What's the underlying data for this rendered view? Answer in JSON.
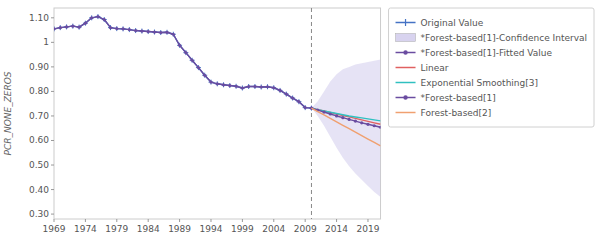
{
  "chart_data": {
    "type": "line",
    "y_label": "PCR_NONE_ZEROS",
    "x": [
      1969,
      1970,
      1971,
      1972,
      1973,
      1974,
      1975,
      1976,
      1977,
      1978,
      1979,
      1980,
      1981,
      1982,
      1983,
      1984,
      1985,
      1986,
      1987,
      1988,
      1989,
      1990,
      1991,
      1992,
      1993,
      1994,
      1995,
      1996,
      1997,
      1998,
      1999,
      2000,
      2001,
      2002,
      2003,
      2004,
      2005,
      2006,
      2007,
      2008,
      2009,
      2010,
      2011,
      2012,
      2013,
      2014,
      2015,
      2016,
      2017,
      2018,
      2019,
      2020,
      2021
    ],
    "xlim": [
      1969,
      2021
    ],
    "ylim": [
      0.28,
      1.14
    ],
    "xticks": [
      1969,
      1974,
      1979,
      1984,
      1989,
      1994,
      1999,
      2004,
      2009,
      2014,
      2019
    ],
    "yticks": [
      {
        "value": 0.3,
        "label": "0.30"
      },
      {
        "value": 0.4,
        "label": "0.40"
      },
      {
        "value": 0.5,
        "label": "0.50"
      },
      {
        "value": 0.6,
        "label": "0.60"
      },
      {
        "value": 0.7,
        "label": "0.70"
      },
      {
        "value": 0.8,
        "label": "0.80"
      },
      {
        "value": 0.9,
        "label": "0.90"
      },
      1,
      {
        "value": 1.1,
        "label": "1.10"
      }
    ],
    "cutoff_x": 2010,
    "grid": false,
    "legend": "right",
    "series": [
      {
        "name": "Original Value",
        "type": "line",
        "color": "#4472c4",
        "marker": "plus",
        "values": [
          1.055,
          1.06,
          1.063,
          1.066,
          1.062,
          1.078,
          1.1,
          1.105,
          1.093,
          1.06,
          1.056,
          1.055,
          1.052,
          1.048,
          1.046,
          1.044,
          1.042,
          1.04,
          1.041,
          1.033,
          0.988,
          0.958,
          0.927,
          0.897,
          0.866,
          0.838,
          0.831,
          0.827,
          0.824,
          0.821,
          0.814,
          0.82,
          0.82,
          0.818,
          0.819,
          0.815,
          0.804,
          0.789,
          0.773,
          0.758,
          0.734,
          0.732,
          null,
          null,
          null,
          null,
          null,
          null,
          null,
          null,
          null,
          null,
          null
        ]
      },
      {
        "name": "*Forest-based[1]-Confidence Interval",
        "type": "area",
        "color": "#c8c0e8",
        "values": [
          null,
          null,
          null,
          null,
          null,
          null,
          null,
          null,
          null,
          null,
          null,
          null,
          null,
          null,
          null,
          null,
          null,
          null,
          null,
          null,
          null,
          null,
          null,
          null,
          null,
          null,
          null,
          null,
          null,
          null,
          null,
          null,
          null,
          null,
          null,
          null,
          null,
          null,
          null,
          null,
          null,
          0.732,
          0.76,
          0.8,
          0.84,
          0.87,
          0.89,
          0.9,
          0.91,
          0.915,
          0.92,
          0.925,
          0.93
        ],
        "lower": [
          null,
          null,
          null,
          null,
          null,
          null,
          null,
          null,
          null,
          null,
          null,
          null,
          null,
          null,
          null,
          null,
          null,
          null,
          null,
          null,
          null,
          null,
          null,
          null,
          null,
          null,
          null,
          null,
          null,
          null,
          null,
          null,
          null,
          null,
          null,
          null,
          null,
          null,
          null,
          null,
          null,
          0.732,
          0.7,
          0.66,
          0.615,
          0.57,
          0.53,
          0.495,
          0.465,
          0.44,
          0.415,
          0.39,
          0.37
        ]
      },
      {
        "name": "*Forest-based[1]-Fitted Value",
        "type": "line",
        "color": "#6a4ca0",
        "marker": "circle",
        "values": [
          1.055,
          1.06,
          1.063,
          1.066,
          1.062,
          1.078,
          1.1,
          1.105,
          1.093,
          1.06,
          1.056,
          1.055,
          1.052,
          1.048,
          1.046,
          1.044,
          1.042,
          1.04,
          1.041,
          1.033,
          0.988,
          0.958,
          0.927,
          0.897,
          0.866,
          0.838,
          0.831,
          0.827,
          0.824,
          0.821,
          0.814,
          0.82,
          0.82,
          0.818,
          0.819,
          0.815,
          0.804,
          0.789,
          0.773,
          0.758,
          0.734,
          0.732,
          null,
          null,
          null,
          null,
          null,
          null,
          null,
          null,
          null,
          null,
          null
        ]
      },
      {
        "name": "Linear",
        "type": "line",
        "color": "#e06060",
        "values": [
          null,
          null,
          null,
          null,
          null,
          null,
          null,
          null,
          null,
          null,
          null,
          null,
          null,
          null,
          null,
          null,
          null,
          null,
          null,
          null,
          null,
          null,
          null,
          null,
          null,
          null,
          null,
          null,
          null,
          null,
          null,
          null,
          null,
          null,
          null,
          null,
          null,
          null,
          null,
          null,
          null,
          0.732,
          0.726,
          0.72,
          0.714,
          0.708,
          0.702,
          0.696,
          0.69,
          0.684,
          0.678,
          0.672,
          0.666
        ]
      },
      {
        "name": "Exponential Smoothing[3]",
        "type": "line",
        "color": "#30c0c0",
        "values": [
          null,
          null,
          null,
          null,
          null,
          null,
          null,
          null,
          null,
          null,
          null,
          null,
          null,
          null,
          null,
          null,
          null,
          null,
          null,
          null,
          null,
          null,
          null,
          null,
          null,
          null,
          null,
          null,
          null,
          null,
          null,
          null,
          null,
          null,
          null,
          null,
          null,
          null,
          null,
          null,
          null,
          0.732,
          0.726,
          0.72,
          0.715,
          0.71,
          0.705,
          0.7,
          0.696,
          0.692,
          0.688,
          0.684,
          0.68
        ]
      },
      {
        "name": "*Forest-based[1]",
        "type": "line",
        "color": "#6a4ca0",
        "marker": "circle",
        "values": [
          null,
          null,
          null,
          null,
          null,
          null,
          null,
          null,
          null,
          null,
          null,
          null,
          null,
          null,
          null,
          null,
          null,
          null,
          null,
          null,
          null,
          null,
          null,
          null,
          null,
          null,
          null,
          null,
          null,
          null,
          null,
          null,
          null,
          null,
          null,
          null,
          null,
          null,
          null,
          null,
          null,
          0.732,
          0.724,
          0.716,
          0.708,
          0.7,
          0.693,
          0.686,
          0.679,
          0.672,
          0.666,
          0.66,
          0.654
        ]
      },
      {
        "name": "Forest-based[2]",
        "type": "line",
        "color": "#f0a070",
        "values": [
          null,
          null,
          null,
          null,
          null,
          null,
          null,
          null,
          null,
          null,
          null,
          null,
          null,
          null,
          null,
          null,
          null,
          null,
          null,
          null,
          null,
          null,
          null,
          null,
          null,
          null,
          null,
          null,
          null,
          null,
          null,
          null,
          null,
          null,
          null,
          null,
          null,
          null,
          null,
          null,
          null,
          0.732,
          0.718,
          0.704,
          0.69,
          0.676,
          0.662,
          0.648,
          0.634,
          0.62,
          0.606,
          0.592,
          0.578
        ]
      }
    ]
  }
}
